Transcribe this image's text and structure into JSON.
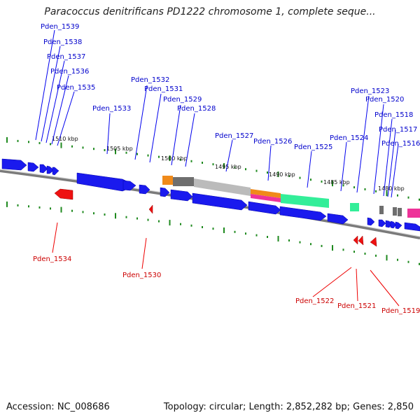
{
  "header": {
    "title": "Paracoccus denitrificans PD1222 chromosome 1, complete seque..."
  },
  "footer": {
    "accession": "Accession: NC_008686",
    "summary": "Topology: circular; Length: 2,852,282 bp; Genes: 2,850"
  },
  "map": {
    "ruler_labels": [
      "1510 kbp",
      "1505 kbp",
      "1500 kbp",
      "1495 kbp",
      "1490 kbp",
      "1485 kbp",
      "1480 kbp"
    ],
    "forward_genes": [
      "Pden_1539",
      "Pden_1538",
      "Pden_1537",
      "Pden_1536",
      "Pden_1535",
      "Pden_1533",
      "Pden_1532",
      "Pden_1531",
      "Pden_1529",
      "Pden_1528",
      "Pden_1527",
      "Pden_1526",
      "Pden_1525",
      "Pden_1524",
      "Pden_1523",
      "Pden_1520",
      "Pden_1518",
      "Pden_1517",
      "Pden_1516"
    ],
    "reverse_genes": [
      "Pden_1534",
      "Pden_1530",
      "Pden_1522",
      "Pden_1521",
      "Pden_1519"
    ],
    "colors": {
      "forward_label": "#0000cc",
      "reverse_label": "#cc0000",
      "forward_gene": "#1a1aee",
      "reverse_gene": "#ee1111",
      "backbone": "#8a8a8a",
      "tick": "#1f8a1f",
      "orange_feature": "#f08a1a",
      "gray_feature": "#6e6e6e",
      "light_gray_feature": "#bbbbbb",
      "magenta_feature": "#ee3399",
      "teal_feature": "#33ee99"
    }
  }
}
